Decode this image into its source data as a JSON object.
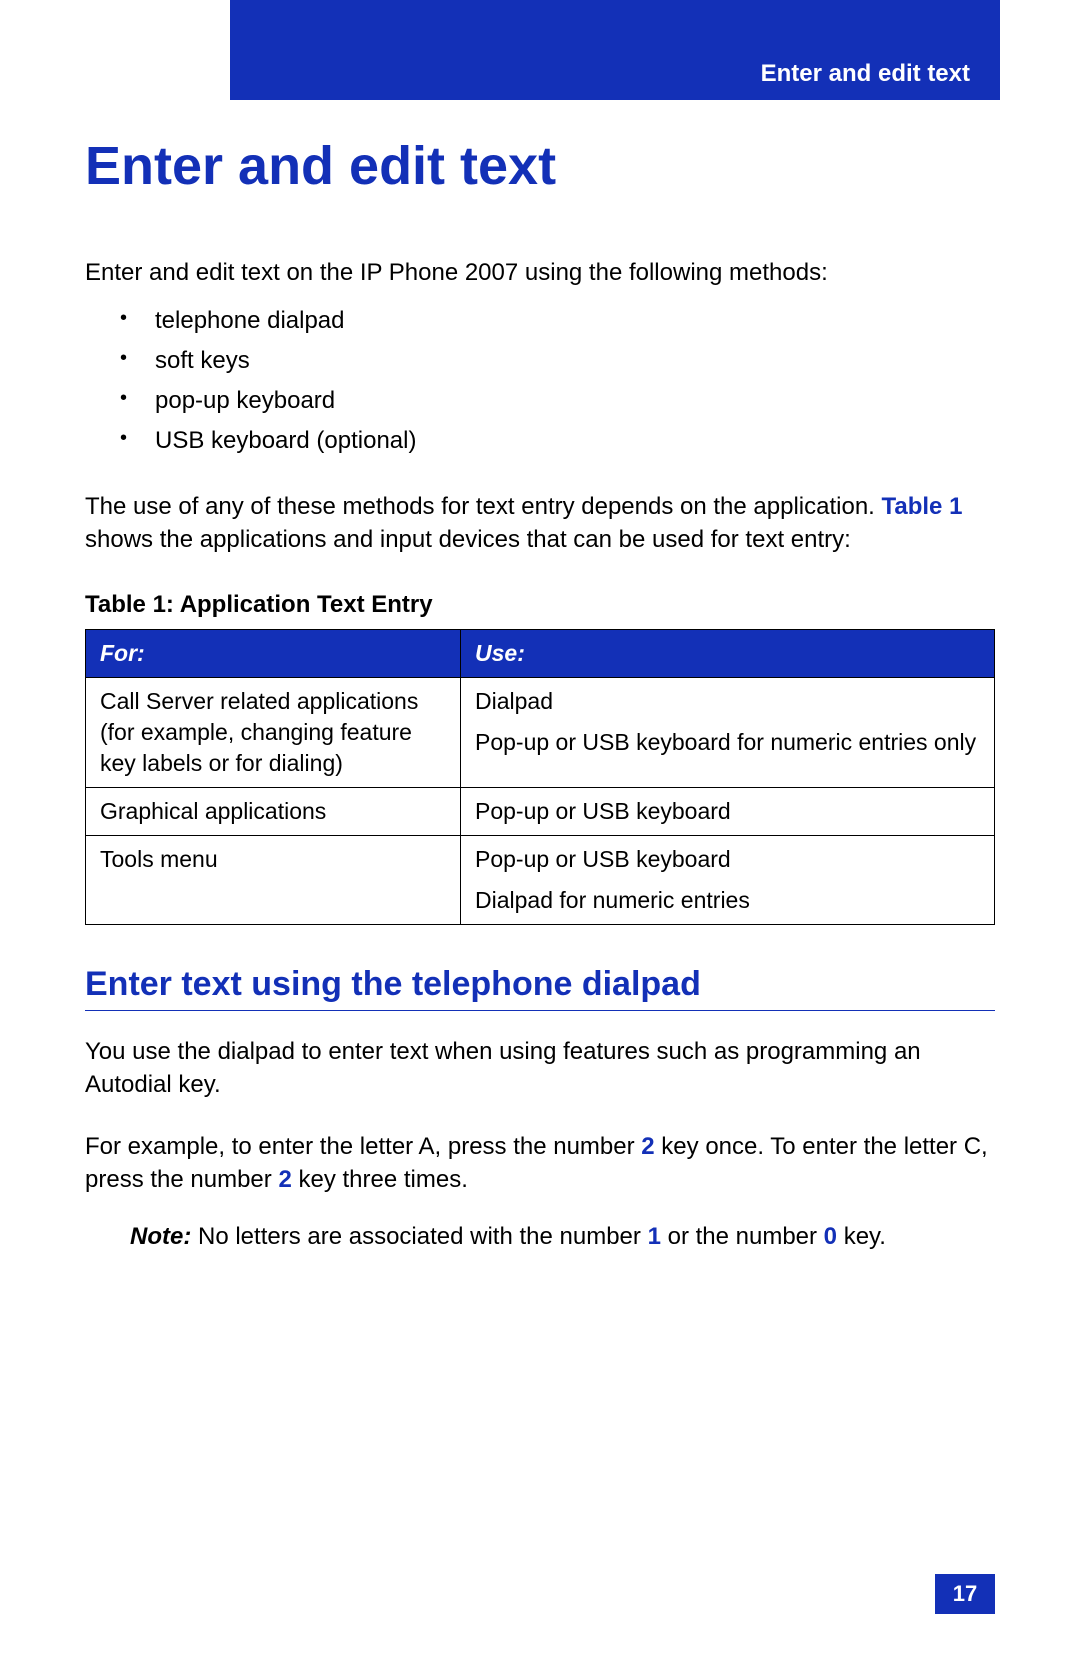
{
  "colors": {
    "brand_blue": "#1330b7",
    "text_black": "#000000",
    "white": "#ffffff"
  },
  "header": {
    "title": "Enter and edit text"
  },
  "main": {
    "title": "Enter and edit text",
    "intro": "Enter and edit text on the IP Phone 2007 using the following methods:",
    "bullets": [
      "telephone dialpad",
      "soft keys",
      "pop-up keyboard",
      "USB keyboard (optional)"
    ],
    "para2_pre": "The use of any of these methods for text entry depends on the application.  ",
    "para2_ref": "Table 1",
    "para2_post": " shows the applications and input devices that can be used for text entry:"
  },
  "table": {
    "caption": "Table 1: Application Text Entry",
    "columns": [
      "For:",
      "Use:"
    ],
    "rows": [
      {
        "for": "Call Server related applications (for example, changing feature key labels or for dialing)",
        "use_lines": [
          "Dialpad",
          "Pop-up or USB keyboard for numeric entries only"
        ]
      },
      {
        "for": "Graphical applications",
        "use_lines": [
          "Pop-up or USB keyboard"
        ]
      },
      {
        "for": "Tools menu",
        "use_lines": [
          "Pop-up or USB keyboard",
          "Dialpad for numeric entries"
        ]
      }
    ]
  },
  "section2": {
    "heading": "Enter text using the telephone dialpad",
    "para1": "You use the dialpad to enter text when using features such as programming an Autodial key.",
    "para2_a": "For example, to enter the letter A, press the number ",
    "para2_key1": "2",
    "para2_b": " key once. To enter the letter C, press the number ",
    "para2_key2": "2",
    "para2_c": " key three times.",
    "note_label": "Note:",
    "note_a": " No letters are associated with the number ",
    "note_key1": "1",
    "note_b": " or the number ",
    "note_key2": "0",
    "note_c": " key."
  },
  "pageNumber": "17"
}
